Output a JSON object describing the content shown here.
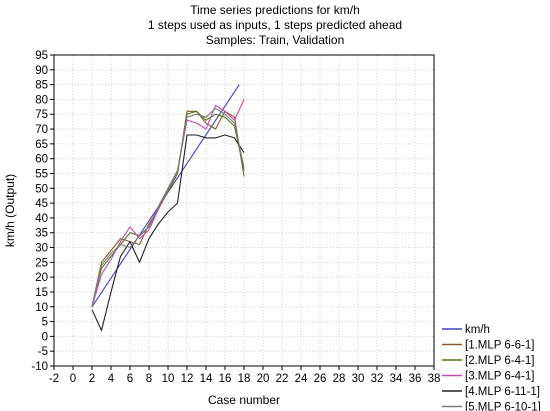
{
  "chart_data": {
    "type": "line",
    "title": [
      "Time series predictions for km/h",
      "1 steps used as inputs, 1 steps predicted ahead",
      "Samples: Train, Validation"
    ],
    "xlabel": "Case number",
    "ylabel": "km/h (Output)",
    "xlim": [
      -2,
      38
    ],
    "ylim": [
      -10,
      95
    ],
    "xticks": [
      "-2",
      "0",
      "2",
      "4",
      "6",
      "8",
      "10",
      "12",
      "14",
      "16",
      "18",
      "20",
      "22",
      "24",
      "26",
      "28",
      "30",
      "32",
      "34",
      "36",
      "38"
    ],
    "yticks": [
      "95",
      "90",
      "85",
      "80",
      "75",
      "70",
      "65",
      "60",
      "55",
      "50",
      "45",
      "40",
      "35",
      "30",
      "25",
      "20",
      "15",
      "10",
      "5",
      "0",
      "-5",
      "-10"
    ],
    "grid": true,
    "legend_position": "bottom-right",
    "series": [
      {
        "name": "km/h",
        "color": "#4040c0",
        "x": [
          2,
          17.5
        ],
        "y": [
          10,
          85
        ]
      },
      {
        "name": "[1.MLP 6-6-1]",
        "color": "#8a5a2a",
        "x": [
          2,
          3,
          4,
          5,
          6,
          7,
          8,
          9,
          10,
          11,
          12,
          13,
          14,
          15,
          16,
          17,
          18
        ],
        "y": [
          10,
          25,
          29,
          33,
          32,
          31,
          38,
          43,
          49,
          55,
          76,
          76,
          72,
          70,
          76,
          74,
          54
        ]
      },
      {
        "name": "[2.MLP 6-4-1]",
        "color": "#4a7a1a",
        "x": [
          2,
          3,
          4,
          5,
          6,
          7,
          8,
          9,
          10,
          11,
          12,
          13,
          14,
          15,
          16,
          17,
          18
        ],
        "y": [
          10,
          23,
          27,
          31,
          35,
          34,
          37,
          43,
          49,
          55,
          75,
          76,
          73,
          75,
          74,
          71,
          56
        ]
      },
      {
        "name": "[3.MLP 6-4-1]",
        "color": "#c04cb0",
        "x": [
          2,
          3,
          4,
          5,
          6,
          7,
          8,
          9,
          10,
          11,
          12,
          13,
          14,
          15,
          16,
          17,
          18
        ],
        "y": [
          10,
          21,
          26,
          32,
          37,
          33,
          36,
          43,
          50,
          56,
          73,
          72,
          70,
          78,
          76,
          73,
          80
        ]
      },
      {
        "name": "[4.MLP 6-11-1]",
        "color": "#202020",
        "x": [
          2,
          3,
          4,
          5,
          6,
          7,
          8,
          9,
          10,
          11,
          12,
          13,
          14,
          15,
          16,
          17,
          18
        ],
        "y": [
          9,
          2,
          15,
          27,
          32,
          25,
          33,
          38,
          42,
          45,
          68,
          68,
          67,
          67,
          68,
          67,
          62
        ]
      },
      {
        "name": "[5.MLP 6-10-1]",
        "color": "#7a7a7a",
        "x": [
          2,
          3,
          4,
          5,
          6,
          7,
          8,
          9,
          10,
          11,
          12,
          13,
          14,
          15,
          16,
          17,
          18
        ],
        "y": [
          10,
          24,
          28,
          31,
          30,
          34,
          37,
          44,
          50,
          56,
          74,
          75,
          74,
          77,
          75,
          72,
          57
        ]
      }
    ]
  }
}
